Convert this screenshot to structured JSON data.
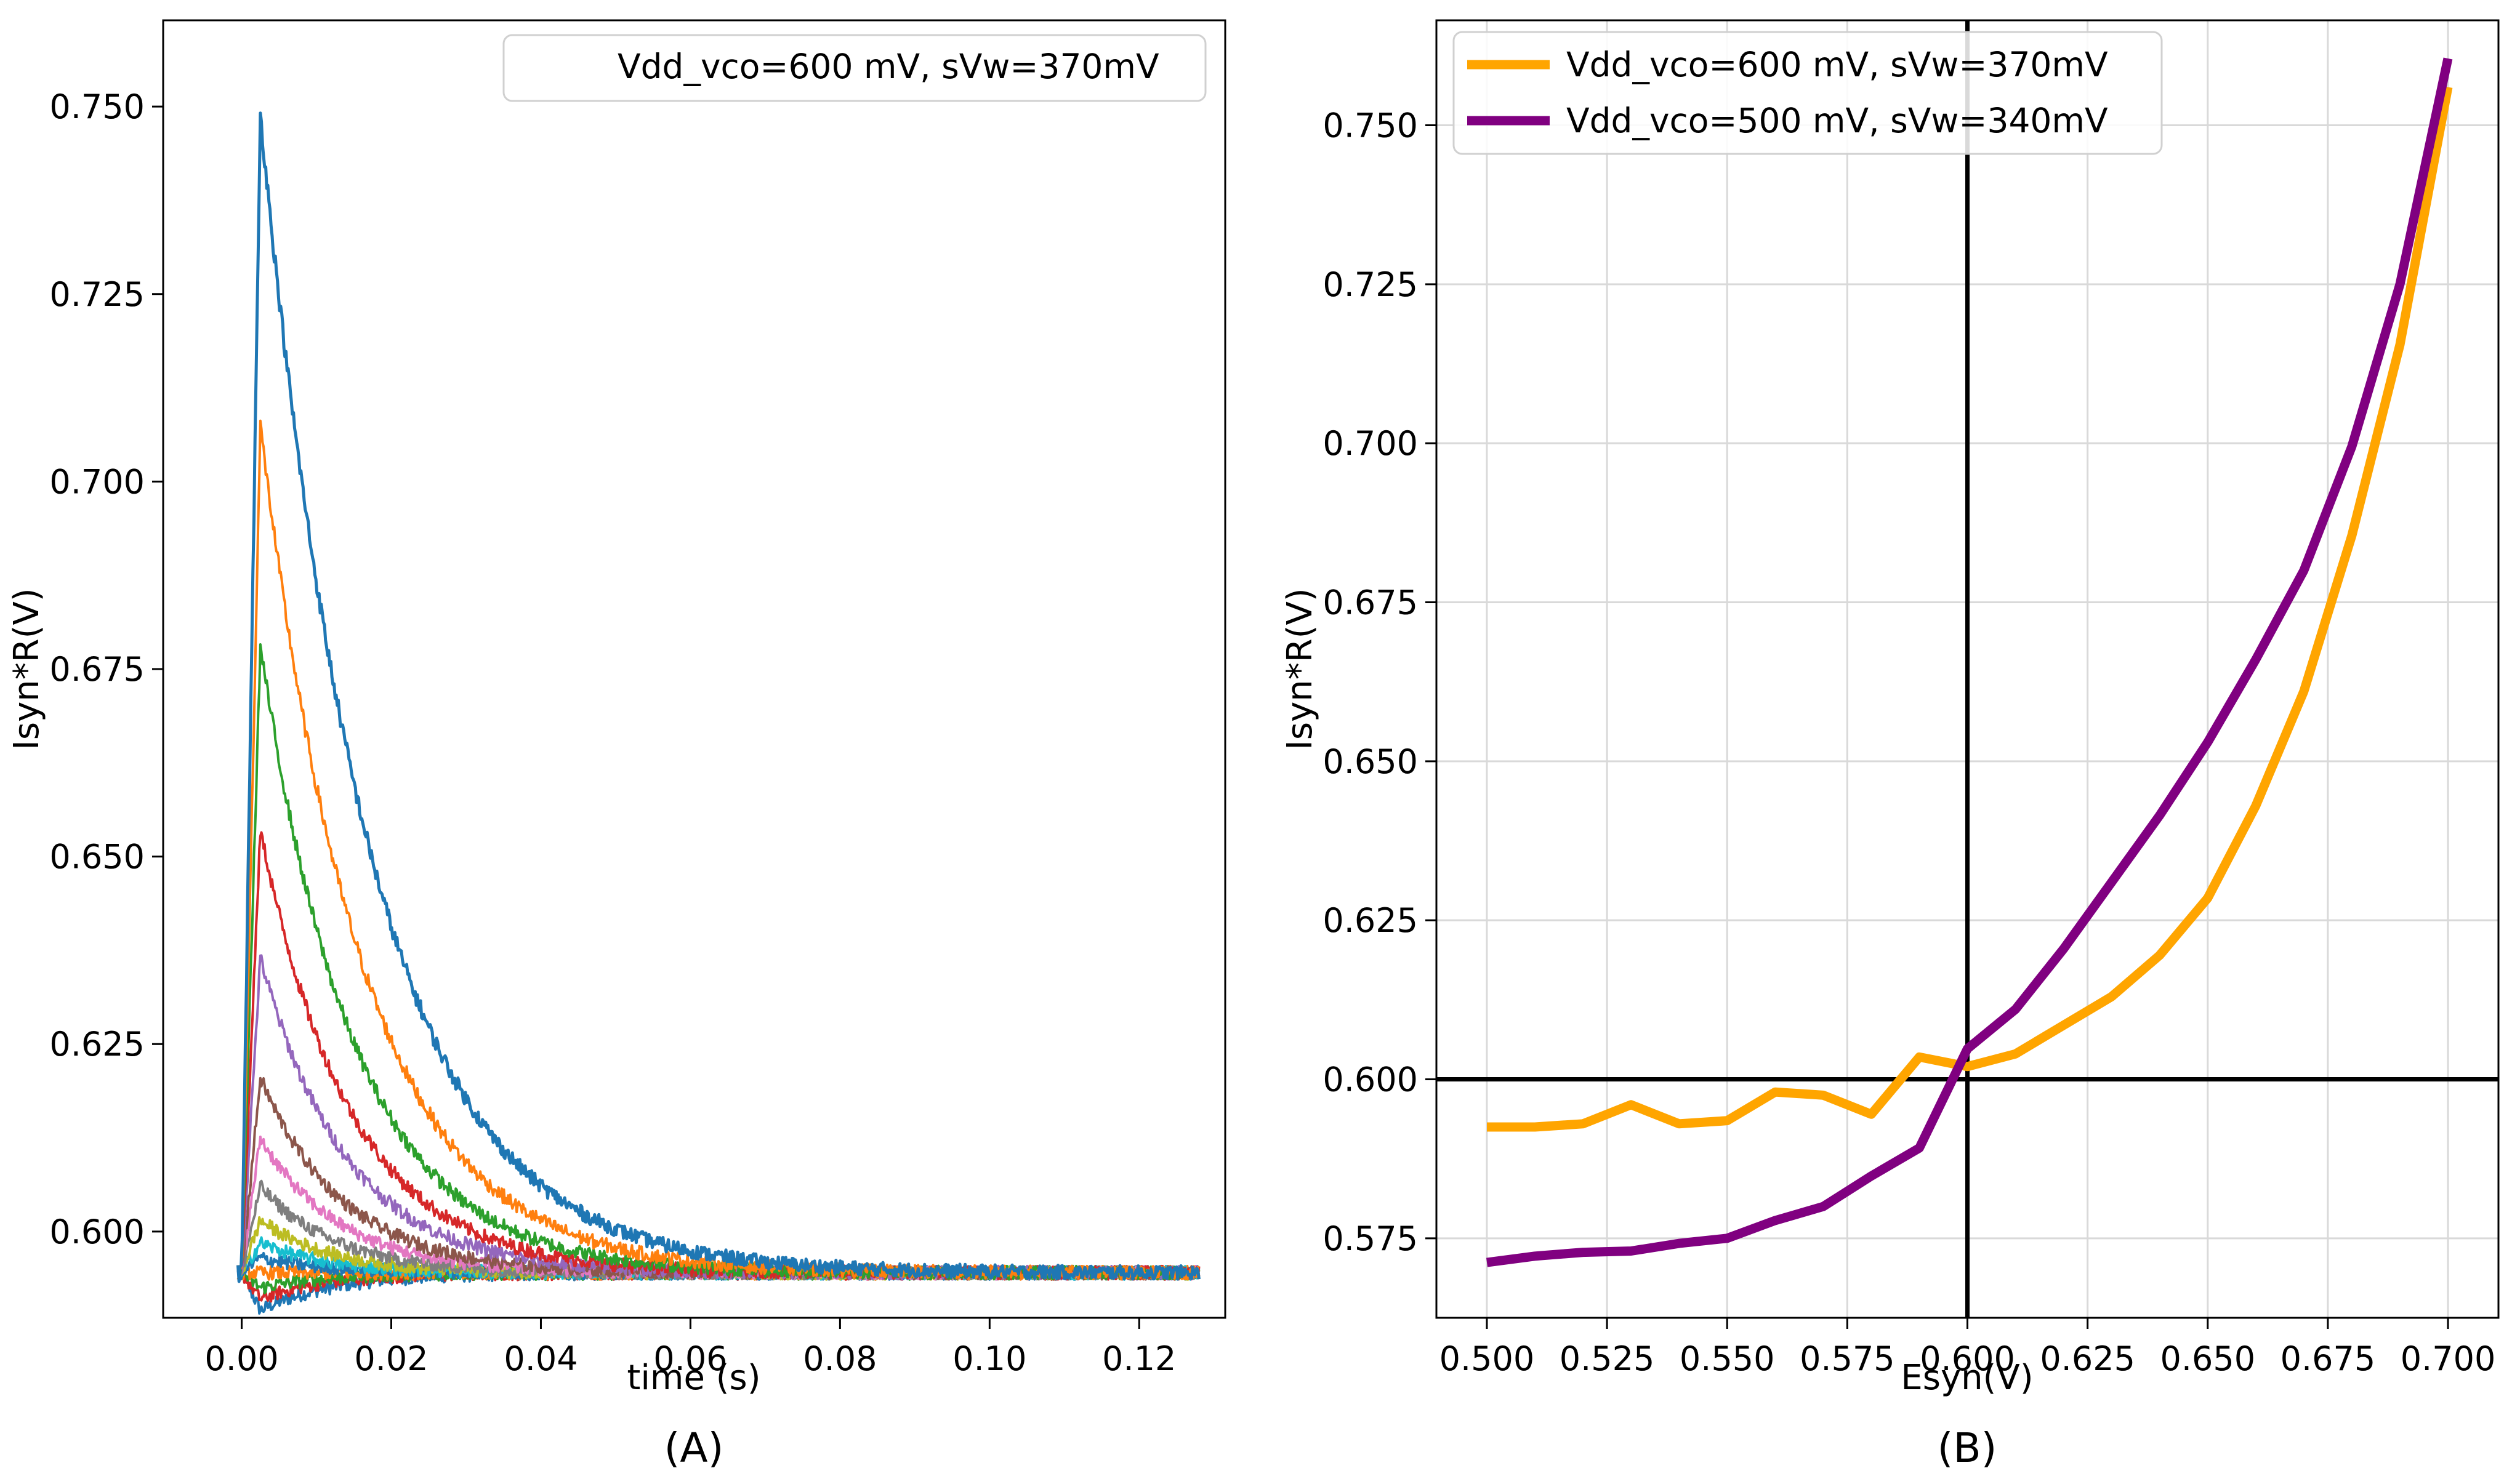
{
  "figure": {
    "panel_a_caption": "(A)",
    "panel_b_caption": "(B)"
  },
  "chart_data": [
    {
      "type": "line",
      "title": "",
      "xlabel": "time (s)",
      "ylabel": "Isyn*R(V)",
      "xlim": [
        -0.0105,
        0.1315
      ],
      "ylim": [
        0.5885,
        0.7615
      ],
      "xticks": [
        0.0,
        0.02,
        0.04,
        0.06,
        0.08,
        0.1,
        0.12
      ],
      "xtick_labels": [
        "0.00",
        "0.02",
        "0.04",
        "0.06",
        "0.08",
        "0.10",
        "0.12"
      ],
      "yticks": [
        0.6,
        0.625,
        0.65,
        0.675,
        0.7,
        0.725,
        0.75
      ],
      "ytick_labels": [
        "0.600",
        "0.625",
        "0.650",
        "0.675",
        "0.700",
        "0.725",
        "0.750"
      ],
      "grid": false,
      "legend": {
        "position": "top-right",
        "entries": [
          "Vdd_vco=600 mV, sVw=370mV"
        ]
      },
      "baseline": 0.5945,
      "t_end": 0.128,
      "t_peak": 0.0025,
      "series": [
        {
          "peak": 0.749,
          "tau": 0.0145,
          "color": "#1f77b4"
        },
        {
          "peak": 0.7075,
          "tau": 0.0135,
          "color": "#ff7f0e"
        },
        {
          "peak": 0.678,
          "tau": 0.0125,
          "color": "#2ca02c"
        },
        {
          "peak": 0.6535,
          "tau": 0.012,
          "color": "#d62728"
        },
        {
          "peak": 0.6365,
          "tau": 0.0115,
          "color": "#9467bd"
        },
        {
          "peak": 0.6205,
          "tau": 0.011,
          "color": "#8c564b"
        },
        {
          "peak": 0.6125,
          "tau": 0.0105,
          "color": "#e377c2"
        },
        {
          "peak": 0.606,
          "tau": 0.01,
          "color": "#7f7f7f"
        },
        {
          "peak": 0.6015,
          "tau": 0.0095,
          "color": "#bcbd22"
        },
        {
          "peak": 0.5985,
          "tau": 0.009,
          "color": "#17becf"
        },
        {
          "peak": 0.5965,
          "tau": 0.009,
          "color": "#1f77b4"
        },
        {
          "peak": 0.5945,
          "tau": 0.009,
          "color": "#ff7f0e"
        },
        {
          "peak": 0.5925,
          "tau": 0.009,
          "color": "#2ca02c"
        },
        {
          "peak": 0.591,
          "tau": 0.009,
          "color": "#d62728"
        },
        {
          "peak": 0.5895,
          "tau": 0.01,
          "color": "#1f77b4"
        }
      ]
    },
    {
      "type": "line",
      "title": "",
      "xlabel": "Esyn(V)",
      "ylabel": "Isyn*R(V)",
      "xlim": [
        0.4895,
        0.7105
      ],
      "ylim": [
        0.5625,
        0.7665
      ],
      "xticks": [
        0.5,
        0.525,
        0.55,
        0.575,
        0.6,
        0.625,
        0.65,
        0.675,
        0.7
      ],
      "xtick_labels": [
        "0.500",
        "0.525",
        "0.550",
        "0.575",
        "0.600",
        "0.625",
        "0.650",
        "0.675",
        "0.700"
      ],
      "yticks": [
        0.575,
        0.6,
        0.625,
        0.65,
        0.675,
        0.7,
        0.725,
        0.75
      ],
      "ytick_labels": [
        "0.575",
        "0.600",
        "0.625",
        "0.650",
        "0.675",
        "0.700",
        "0.725",
        "0.750"
      ],
      "grid": true,
      "reference_lines": {
        "x": 0.6,
        "y": 0.6
      },
      "legend": {
        "position": "top-left"
      },
      "x": [
        0.5,
        0.51,
        0.52,
        0.53,
        0.54,
        0.55,
        0.56,
        0.57,
        0.58,
        0.59,
        0.6,
        0.61,
        0.62,
        0.63,
        0.64,
        0.65,
        0.66,
        0.67,
        0.68,
        0.69,
        0.7
      ],
      "series": [
        {
          "name": "Vdd_vco=600 mV, sVw=370mV",
          "color": "#ffa500",
          "values": [
            0.5925,
            0.5925,
            0.593,
            0.596,
            0.593,
            0.5935,
            0.598,
            0.5975,
            0.5945,
            0.6035,
            0.602,
            0.604,
            0.6085,
            0.613,
            0.6195,
            0.6285,
            0.643,
            0.661,
            0.6855,
            0.7155,
            0.756
          ]
        },
        {
          "name": "Vdd_vco=500 mV, sVw=340mV",
          "color": "#800080",
          "values": [
            0.5712,
            0.5722,
            0.5728,
            0.573,
            0.5742,
            0.575,
            0.5778,
            0.58,
            0.5848,
            0.5892,
            0.6048,
            0.611,
            0.6205,
            0.631,
            0.6415,
            0.653,
            0.666,
            0.68,
            0.6995,
            0.725,
            0.7605
          ]
        }
      ]
    }
  ]
}
